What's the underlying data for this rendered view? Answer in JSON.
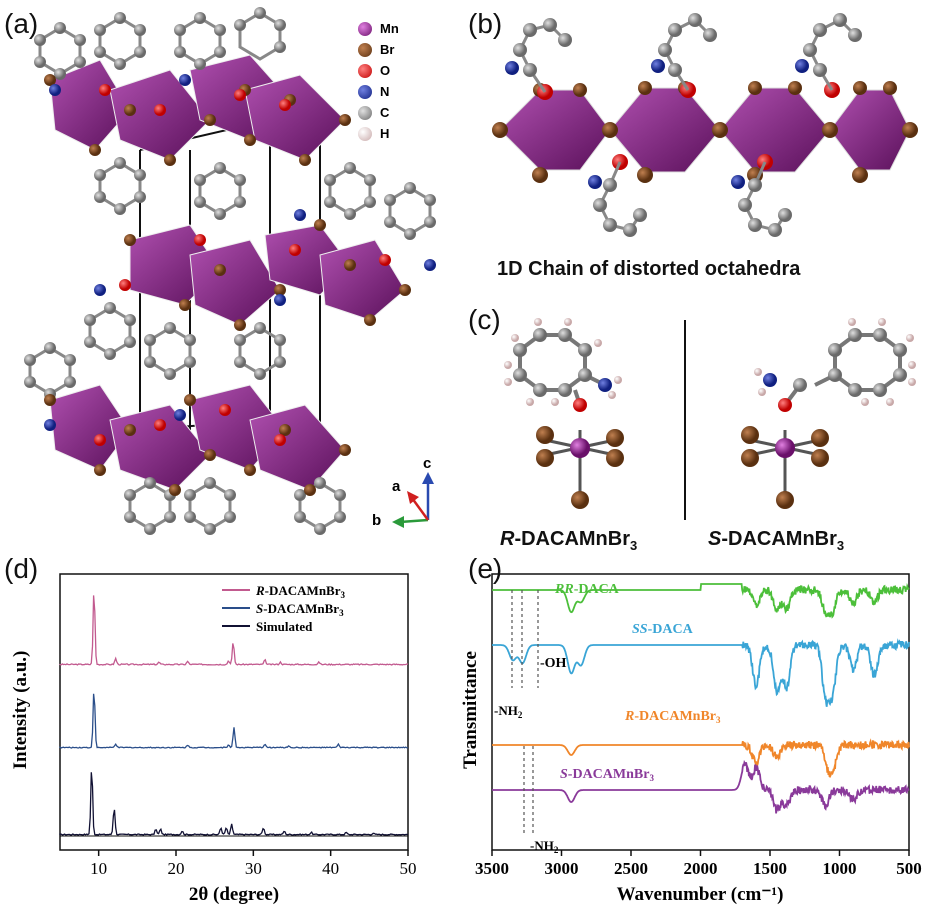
{
  "panels": {
    "a": "(a)",
    "b": "(b)",
    "c": "(c)",
    "d": "(d)",
    "e": "(e)"
  },
  "legend_a": [
    {
      "label": "Mn",
      "color": "#9a2a9a"
    },
    {
      "label": "Br",
      "color": "#7a4a2a"
    },
    {
      "label": "O",
      "color": "#e02020"
    },
    {
      "label": "N",
      "color": "#2a3a9a"
    },
    {
      "label": "C",
      "color": "#9a9aaa"
    },
    {
      "label": "H",
      "color": "#e8d6d6"
    }
  ],
  "axes_a": {
    "a": "a",
    "b": "b",
    "c": "c"
  },
  "caption_b": "1D Chain of distorted octahedra",
  "caption_c": {
    "r_prefix": "R",
    "r_rest": "-DACAMnBr",
    "r_sub": "3",
    "s_prefix": "S",
    "s_rest": "-DACAMnBr",
    "s_sub": "3"
  },
  "chart_data": [
    {
      "type": "line",
      "panel": "d",
      "xlabel": "2θ (degree)",
      "ylabel": "Intensity (a.u.)",
      "xlim": [
        5,
        50
      ],
      "xticks": [
        10,
        20,
        30,
        40,
        50
      ],
      "series": [
        {
          "name": "R-DACAMnBr3",
          "color": "#c25a8f",
          "peaks": [
            [
              9.4,
              1.0
            ],
            [
              12.2,
              0.08
            ],
            [
              17.8,
              0.03
            ],
            [
              21.5,
              0.04
            ],
            [
              26.8,
              0.05
            ],
            [
              27.4,
              0.3
            ],
            [
              31.5,
              0.06
            ],
            [
              33.5,
              0.03
            ],
            [
              38.5,
              0.03
            ]
          ]
        },
        {
          "name": "S-DACAMnBr3",
          "color": "#2a4e8a",
          "peaks": [
            [
              9.4,
              0.95
            ],
            [
              12.2,
              0.06
            ],
            [
              21.5,
              0.04
            ],
            [
              26.8,
              0.05
            ],
            [
              27.5,
              0.32
            ],
            [
              31.5,
              0.06
            ],
            [
              34.6,
              0.03
            ],
            [
              41.0,
              0.05
            ]
          ]
        },
        {
          "name": "Simulated",
          "color": "#111133",
          "peaks": [
            [
              9.1,
              1.0
            ],
            [
              12.0,
              0.4
            ],
            [
              17.4,
              0.08
            ],
            [
              18.0,
              0.08
            ],
            [
              20.8,
              0.05
            ],
            [
              25.8,
              0.1
            ],
            [
              26.5,
              0.1
            ],
            [
              27.2,
              0.15
            ],
            [
              31.3,
              0.1
            ],
            [
              34.0,
              0.05
            ],
            [
              37.5,
              0.03
            ],
            [
              42.0,
              0.03
            ],
            [
              45.5,
              0.02
            ]
          ]
        }
      ]
    },
    {
      "type": "line",
      "panel": "e",
      "xlabel": "Wavenumber (cm⁻¹)",
      "ylabel": "Transmittance",
      "xlim": [
        3500,
        500
      ],
      "xticks": [
        3500,
        3000,
        2500,
        2000,
        1500,
        1000,
        500
      ],
      "series": [
        {
          "name": "RR-DACA",
          "color": "#4cbf3a"
        },
        {
          "name": "SS-DACA",
          "color": "#3aa5d6"
        },
        {
          "name": "R-DACAMnBr3",
          "color": "#f0862a"
        },
        {
          "name": "S-DACAMnBr3",
          "color": "#8a3a9a"
        }
      ],
      "annotations": {
        "oh": "-OH",
        "nh2_top": "-NH",
        "nh2_top_sub": "2",
        "nh2_bottom": "-NH",
        "nh2_bottom_sub": "2"
      }
    }
  ]
}
